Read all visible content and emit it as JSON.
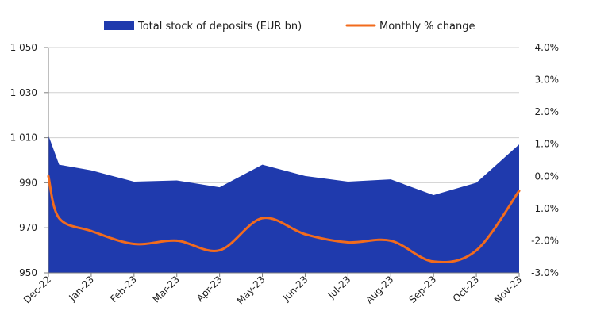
{
  "chart_data": {
    "type": "area+line",
    "categories": [
      "Dec-22",
      "Jan-23",
      "Feb-23",
      "Mar-23",
      "Apr-23",
      "May-23",
      "Jun-23",
      "Jul-23",
      "Aug-23",
      "Sep-23",
      "Oct-23",
      "Nov-23"
    ],
    "series": [
      {
        "name": "Total stock of deposits (EUR bn)",
        "kind": "area",
        "axis": "left",
        "color": "#1f3aad",
        "values": [
          1011,
          995.5,
          990.5,
          991,
          988,
          998,
          993,
          990.5,
          991.5,
          984.5,
          990,
          1007
        ],
        "extra_points": [
          {
            "x": 0.25,
            "y": 998
          }
        ]
      },
      {
        "name": "Monthly % change",
        "kind": "line",
        "axis": "right",
        "color": "#f26b1d",
        "values": [
          0.0,
          -1.7,
          -2.1,
          -2.0,
          -2.3,
          -1.3,
          -1.8,
          -2.05,
          -2.0,
          -2.65,
          -2.3,
          -0.45
        ],
        "extra_points": [
          {
            "x": 0.25,
            "y": -1.3
          }
        ]
      }
    ],
    "y_left": {
      "lim": [
        950,
        1050
      ],
      "ticks": [
        950,
        970,
        990,
        1010,
        1030,
        1050
      ],
      "tick_labels": [
        "950",
        "970",
        "990",
        "1 010",
        "1 030",
        "1 050"
      ]
    },
    "y_right": {
      "lim": [
        -3.0,
        4.0
      ],
      "ticks": [
        -3.0,
        -2.0,
        -1.0,
        0.0,
        1.0,
        2.0,
        3.0,
        4.0
      ],
      "tick_labels": [
        "-3.0%",
        "-2.0%",
        "-1.0%",
        "0.0%",
        "1.0%",
        "2.0%",
        "3.0%",
        "4.0%"
      ]
    },
    "grid": true,
    "legend_position": "top-center",
    "title": "",
    "xlabel": "",
    "ylabel": ""
  }
}
